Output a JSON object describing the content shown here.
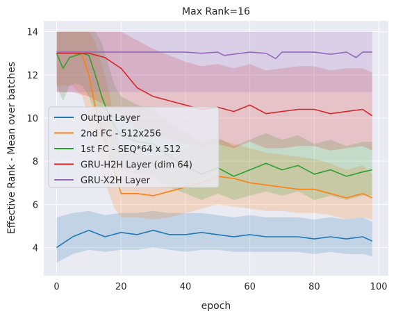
{
  "chart_data": {
    "type": "line",
    "title": "Max Rank=16",
    "xlabel": "epoch",
    "ylabel": "Effective Rank - Mean over batches",
    "xlim": [
      -4,
      103
    ],
    "ylim": [
      2.7,
      14.5
    ],
    "xticks": [
      0,
      20,
      40,
      60,
      80,
      100
    ],
    "yticks": [
      4,
      6,
      8,
      10,
      12,
      14
    ],
    "xtick_labels": [
      "0",
      "20",
      "40",
      "60",
      "80",
      "100"
    ],
    "ytick_labels": [
      "4",
      "6",
      "8",
      "10",
      "12",
      "14"
    ],
    "grid": true,
    "legend_position": "center-left",
    "series": [
      {
        "name": "Output Layer",
        "color": "#1f77b4",
        "x": [
          0,
          5,
          10,
          15,
          20,
          25,
          30,
          35,
          40,
          45,
          50,
          55,
          60,
          65,
          70,
          75,
          80,
          85,
          90,
          95,
          98
        ],
        "values": [
          4.0,
          4.5,
          4.8,
          4.5,
          4.7,
          4.6,
          4.8,
          4.6,
          4.6,
          4.7,
          4.6,
          4.5,
          4.6,
          4.5,
          4.5,
          4.5,
          4.4,
          4.5,
          4.4,
          4.5,
          4.3
        ],
        "lower": [
          3.3,
          3.7,
          3.9,
          3.8,
          3.9,
          3.9,
          4.0,
          3.9,
          3.8,
          3.9,
          3.9,
          3.8,
          3.8,
          3.8,
          3.8,
          3.8,
          3.7,
          3.8,
          3.7,
          3.7,
          3.6
        ],
        "upper": [
          5.4,
          5.6,
          5.7,
          5.5,
          5.6,
          5.6,
          5.7,
          5.6,
          5.6,
          5.6,
          5.5,
          5.4,
          5.5,
          5.4,
          5.4,
          5.4,
          5.3,
          5.4,
          5.3,
          5.4,
          5.2
        ]
      },
      {
        "name": "2nd FC - 512x256",
        "color": "#ff7f0e",
        "x": [
          0,
          5,
          8,
          10,
          12,
          15,
          18,
          20,
          25,
          30,
          35,
          40,
          45,
          50,
          55,
          60,
          65,
          70,
          75,
          80,
          85,
          90,
          95,
          98
        ],
        "values": [
          13.0,
          13.0,
          12.9,
          12.0,
          10.5,
          9.0,
          7.5,
          6.5,
          6.5,
          6.4,
          6.6,
          6.8,
          7.0,
          7.3,
          7.2,
          7.0,
          6.9,
          6.8,
          6.7,
          6.7,
          6.5,
          6.3,
          6.5,
          6.3
        ],
        "lower": [
          11.5,
          11.5,
          11.0,
          10.0,
          8.5,
          7.0,
          5.8,
          5.4,
          5.4,
          5.3,
          5.4,
          5.6,
          5.8,
          6.0,
          5.9,
          5.8,
          5.7,
          5.7,
          5.6,
          5.6,
          5.5,
          5.3,
          5.4,
          5.3
        ],
        "upper": [
          14.0,
          14.0,
          14.0,
          14.0,
          13.5,
          12.0,
          10.0,
          8.5,
          8.4,
          8.2,
          8.4,
          8.6,
          8.8,
          9.0,
          8.8,
          8.6,
          8.4,
          8.3,
          8.2,
          8.1,
          7.9,
          7.6,
          7.8,
          7.4
        ]
      },
      {
        "name": "1st FC - SEQ*64 x 512",
        "color": "#2ca02c",
        "x": [
          0,
          2,
          4,
          6,
          8,
          10,
          12,
          14,
          16,
          18,
          20,
          25,
          30,
          35,
          40,
          45,
          50,
          55,
          60,
          65,
          70,
          75,
          80,
          85,
          90,
          95,
          98
        ],
        "values": [
          13.0,
          12.3,
          12.8,
          12.9,
          13.0,
          12.9,
          12.0,
          11.0,
          10.2,
          9.6,
          9.2,
          8.9,
          8.8,
          8.2,
          7.8,
          7.4,
          7.7,
          7.3,
          7.6,
          7.9,
          7.6,
          7.8,
          7.4,
          7.6,
          7.3,
          7.5,
          7.6
        ],
        "lower": [
          11.5,
          10.8,
          11.5,
          11.6,
          11.5,
          11.0,
          10.2,
          9.2,
          8.5,
          8.0,
          7.6,
          7.4,
          7.3,
          6.8,
          6.5,
          6.2,
          6.5,
          6.2,
          6.4,
          6.6,
          6.4,
          6.6,
          6.2,
          6.4,
          6.2,
          6.4,
          6.4
        ],
        "upper": [
          14.0,
          14.0,
          14.0,
          14.0,
          14.0,
          14.0,
          14.0,
          13.5,
          12.5,
          11.5,
          11.0,
          10.6,
          10.4,
          9.8,
          9.3,
          8.9,
          9.1,
          8.7,
          9.0,
          9.3,
          9.0,
          9.2,
          8.8,
          9.0,
          8.7,
          8.9,
          8.9
        ]
      },
      {
        "name": "GRU-H2H Layer (dim 64)",
        "color": "#d62728",
        "x": [
          0,
          5,
          10,
          15,
          20,
          25,
          30,
          35,
          40,
          45,
          50,
          55,
          60,
          65,
          70,
          75,
          80,
          85,
          90,
          95,
          98
        ],
        "values": [
          13.0,
          13.0,
          13.0,
          12.8,
          12.3,
          11.4,
          11.0,
          10.8,
          10.6,
          10.4,
          10.5,
          10.3,
          10.6,
          10.2,
          10.3,
          10.4,
          10.4,
          10.2,
          10.3,
          10.4,
          10.1
        ],
        "lower": [
          11.2,
          11.2,
          11.0,
          10.6,
          10.2,
          9.5,
          9.2,
          9.0,
          8.8,
          8.7,
          8.8,
          8.6,
          8.9,
          8.6,
          8.6,
          8.7,
          8.7,
          8.5,
          8.6,
          8.7,
          8.5
        ],
        "upper": [
          14.0,
          14.0,
          14.0,
          14.0,
          14.0,
          13.6,
          13.2,
          12.9,
          12.6,
          12.4,
          12.5,
          12.3,
          12.5,
          12.2,
          12.3,
          12.4,
          12.4,
          12.2,
          12.3,
          12.3,
          12.1
        ]
      },
      {
        "name": "GRU-X2H Layer",
        "color": "#9467bd",
        "x": [
          0,
          10,
          20,
          30,
          40,
          45,
          50,
          52,
          60,
          65,
          68,
          70,
          75,
          80,
          85,
          90,
          93,
          95,
          98
        ],
        "values": [
          13.05,
          13.05,
          13.05,
          13.05,
          13.05,
          13.0,
          13.05,
          12.9,
          13.05,
          13.0,
          12.75,
          13.05,
          13.05,
          13.05,
          12.95,
          13.05,
          12.8,
          13.05,
          13.05
        ],
        "lower": [
          11.2,
          11.2,
          11.2,
          11.2,
          11.2,
          11.2,
          11.2,
          11.2,
          11.2,
          11.2,
          11.2,
          11.2,
          11.2,
          11.2,
          11.2,
          11.2,
          11.2,
          11.2,
          11.2
        ],
        "upper": [
          14.0,
          14.0,
          14.0,
          14.0,
          14.0,
          14.0,
          14.0,
          14.0,
          14.0,
          14.0,
          14.0,
          14.0,
          14.0,
          14.0,
          14.0,
          14.0,
          14.0,
          14.0,
          14.0
        ]
      }
    ]
  }
}
